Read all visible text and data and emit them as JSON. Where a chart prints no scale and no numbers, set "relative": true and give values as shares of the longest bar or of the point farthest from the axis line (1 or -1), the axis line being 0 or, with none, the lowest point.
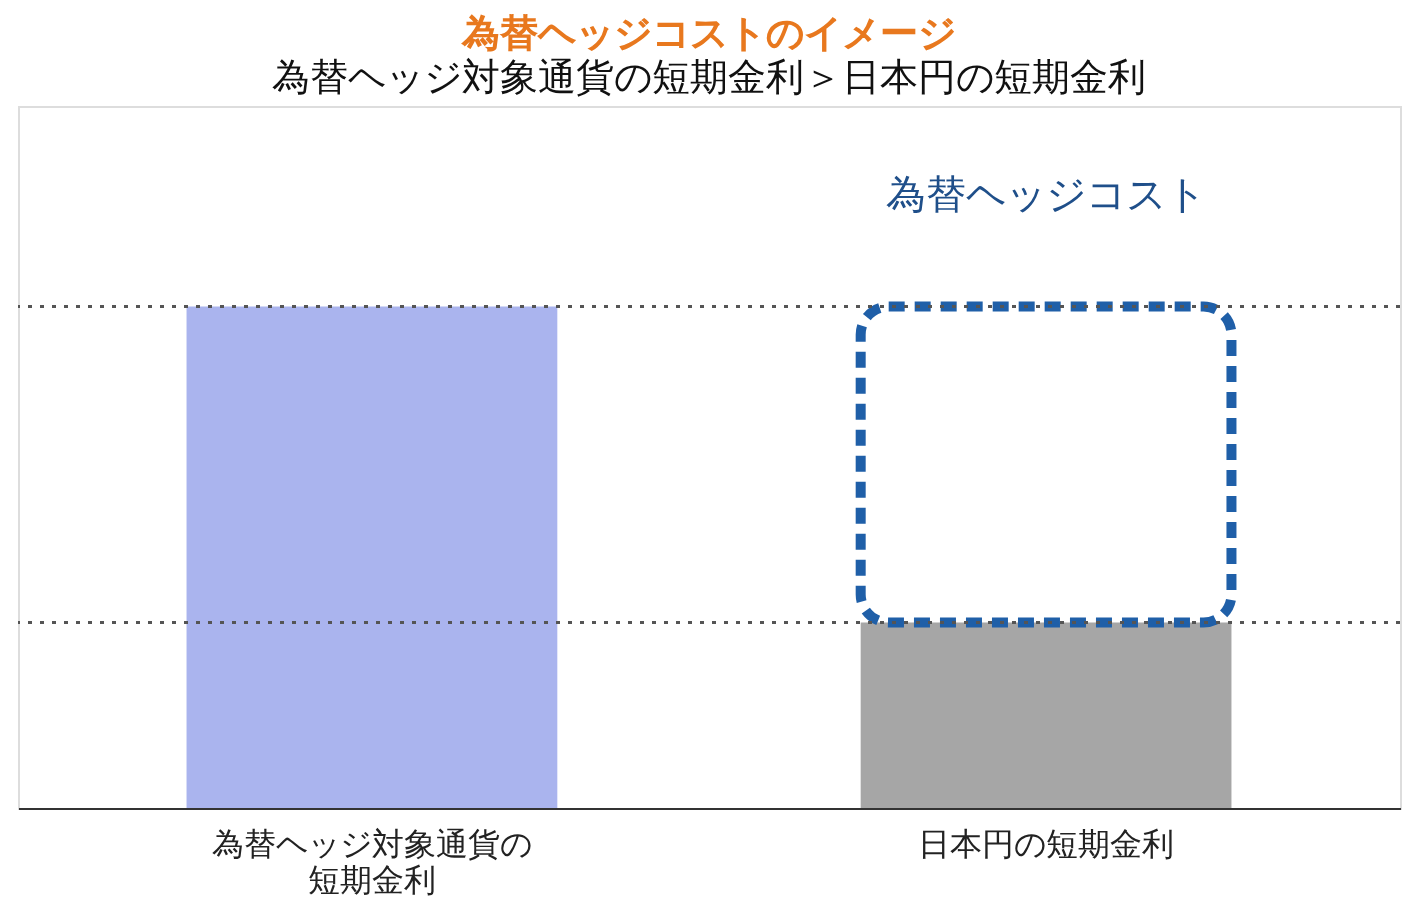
{
  "chart_data": {
    "type": "bar",
    "title": "為替ヘッジコストのイメージ",
    "subtitle": "為替ヘッジ対象通貨の短期金利＞日本円の短期金利",
    "categories": [
      "為替ヘッジ対象通貨の短期金利",
      "日本円の短期金利"
    ],
    "relative": true,
    "stacked": true,
    "series": [
      {
        "colors": [
          "#aab4ee",
          "#a6a6a6"
        ],
        "values": [
          1,
          0.37
        ]
      },
      {
        "color": "#1f5fa8",
        "line_style": "dashed",
        "values": [
          null,
          0.63
        ]
      }
    ],
    "ref_lines": [
      {
        "axis": "y",
        "value": 1,
        "label": null,
        "color": "#555555",
        "line_style": "dotted"
      },
      {
        "axis": "y",
        "value": 0.37,
        "label": null,
        "color": "#555555",
        "line_style": "dotted"
      }
    ],
    "annotations": [
      "為替ヘッジコスト"
    ]
  }
}
